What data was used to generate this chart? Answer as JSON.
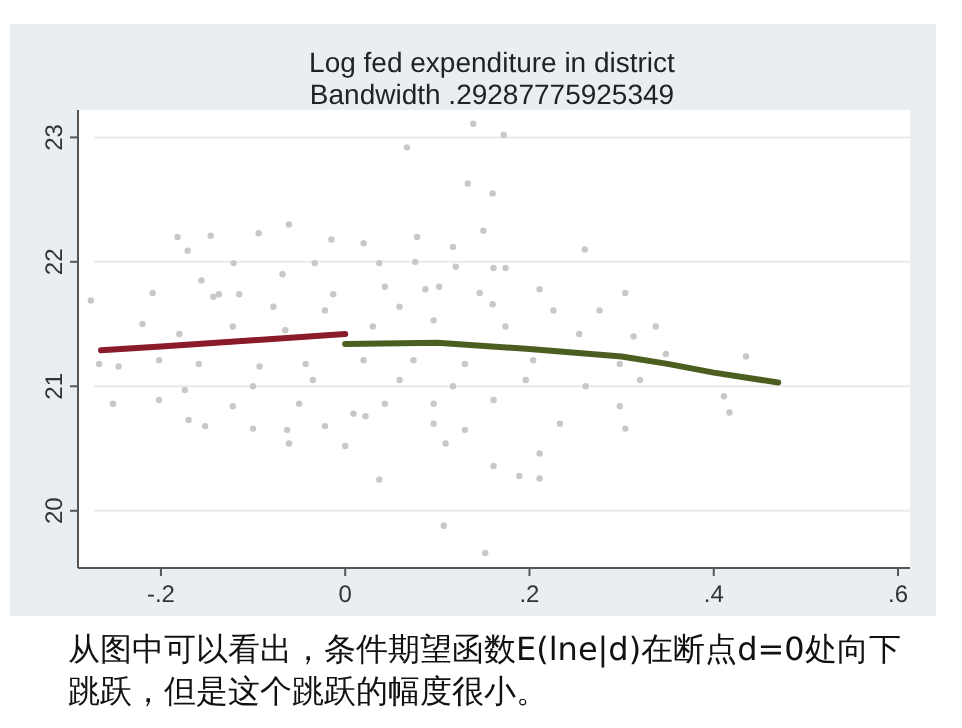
{
  "chart_data": {
    "type": "scatter",
    "title": "Log fed expenditure in district",
    "subtitle": "Bandwidth .29287775925349",
    "xlim": [
      -0.29,
      0.613
    ],
    "xticks": [
      {
        "value": -0.2,
        "label": "-.2"
      },
      0,
      {
        "value": 0.2,
        "label": ".2"
      },
      {
        "value": 0.4,
        "label": ".4"
      },
      {
        "value": 0.6,
        "label": ".6"
      }
    ],
    "ylim": [
      19.54,
      23.22
    ],
    "yticks": [
      20,
      21,
      22,
      23
    ],
    "grid": "y",
    "series": [
      {
        "marker": "circle",
        "color": "#c8c8c8",
        "x": [
          0.139,
          0.172,
          0.067,
          0.133,
          0.16,
          0.15,
          -0.182,
          -0.146,
          -0.094,
          -0.061,
          -0.015,
          0.02,
          0.078,
          0.117,
          0.26,
          -0.171,
          -0.121,
          -0.033,
          0.037,
          0.076,
          0.12,
          0.161,
          0.174,
          -0.068,
          -0.156,
          -0.276,
          -0.209,
          -0.137,
          -0.115,
          0.043,
          0.102,
          0.146,
          0.211,
          0.304,
          -0.013,
          0.087,
          -0.143,
          -0.078,
          -0.022,
          0.059,
          0.16,
          0.226,
          0.276,
          0.337,
          -0.22,
          -0.18,
          -0.122,
          -0.065,
          0.03,
          0.096,
          0.174,
          0.254,
          0.313,
          -0.267,
          -0.246,
          -0.202,
          -0.159,
          -0.093,
          -0.043,
          0.02,
          0.074,
          0.13,
          0.204,
          0.298,
          0.348,
          0.435,
          -0.174,
          -0.1,
          -0.035,
          0.059,
          0.117,
          0.196,
          0.261,
          0.32,
          -0.252,
          -0.202,
          -0.122,
          -0.05,
          0.043,
          0.096,
          0.161,
          0.298,
          0.411,
          0.417,
          -0.17,
          -0.152,
          -0.1,
          -0.063,
          -0.022,
          0.009,
          0.022,
          0.096,
          0.13,
          0.233,
          0.304,
          -0.061,
          0.0,
          0.109,
          0.211,
          0.037,
          0.161,
          0.189,
          0.211,
          0.107,
          0.152
        ],
        "values": [
          23.11,
          23.02,
          22.92,
          22.63,
          22.55,
          22.25,
          22.2,
          22.21,
          22.23,
          22.3,
          22.18,
          22.15,
          22.2,
          22.12,
          22.1,
          22.09,
          21.99,
          21.99,
          21.99,
          22.0,
          21.96,
          21.95,
          21.95,
          21.9,
          21.85,
          21.69,
          21.75,
          21.74,
          21.74,
          21.8,
          21.8,
          21.75,
          21.78,
          21.75,
          21.74,
          21.78,
          21.72,
          21.64,
          21.61,
          21.64,
          21.66,
          21.61,
          21.61,
          21.48,
          21.5,
          21.42,
          21.48,
          21.45,
          21.48,
          21.53,
          21.48,
          21.42,
          21.4,
          21.18,
          21.16,
          21.21,
          21.18,
          21.16,
          21.18,
          21.21,
          21.21,
          21.18,
          21.21,
          21.18,
          21.26,
          21.24,
          20.97,
          21.0,
          21.05,
          21.05,
          21.0,
          21.05,
          21.0,
          21.05,
          20.86,
          20.89,
          20.84,
          20.86,
          20.86,
          20.86,
          20.89,
          20.84,
          20.92,
          20.79,
          20.73,
          20.68,
          20.66,
          20.65,
          20.68,
          20.78,
          20.76,
          20.7,
          20.65,
          20.7,
          20.66,
          20.54,
          20.52,
          20.54,
          20.46,
          20.25,
          20.36,
          20.28,
          20.26,
          19.88,
          19.66
        ]
      },
      {
        "type": "line",
        "marker": "none",
        "color": "#8b1a2a",
        "x": [
          -0.265,
          -0.2,
          -0.1,
          0
        ],
        "values": [
          21.29,
          21.32,
          21.37,
          21.42
        ]
      },
      {
        "type": "line",
        "marker": "none",
        "color": "#4b5e1f",
        "x": [
          0,
          0.1,
          0.2,
          0.3,
          0.35,
          0.4,
          0.47
        ],
        "values": [
          21.34,
          21.35,
          21.3,
          21.24,
          21.18,
          21.11,
          21.03
        ]
      }
    ],
    "line_style": "solid",
    "annotations": [
      "从图中可以看出，条件期望函数E(lne|d)在断点d=0处向下跳跃，但是这个跳跃的幅度很小。"
    ]
  }
}
